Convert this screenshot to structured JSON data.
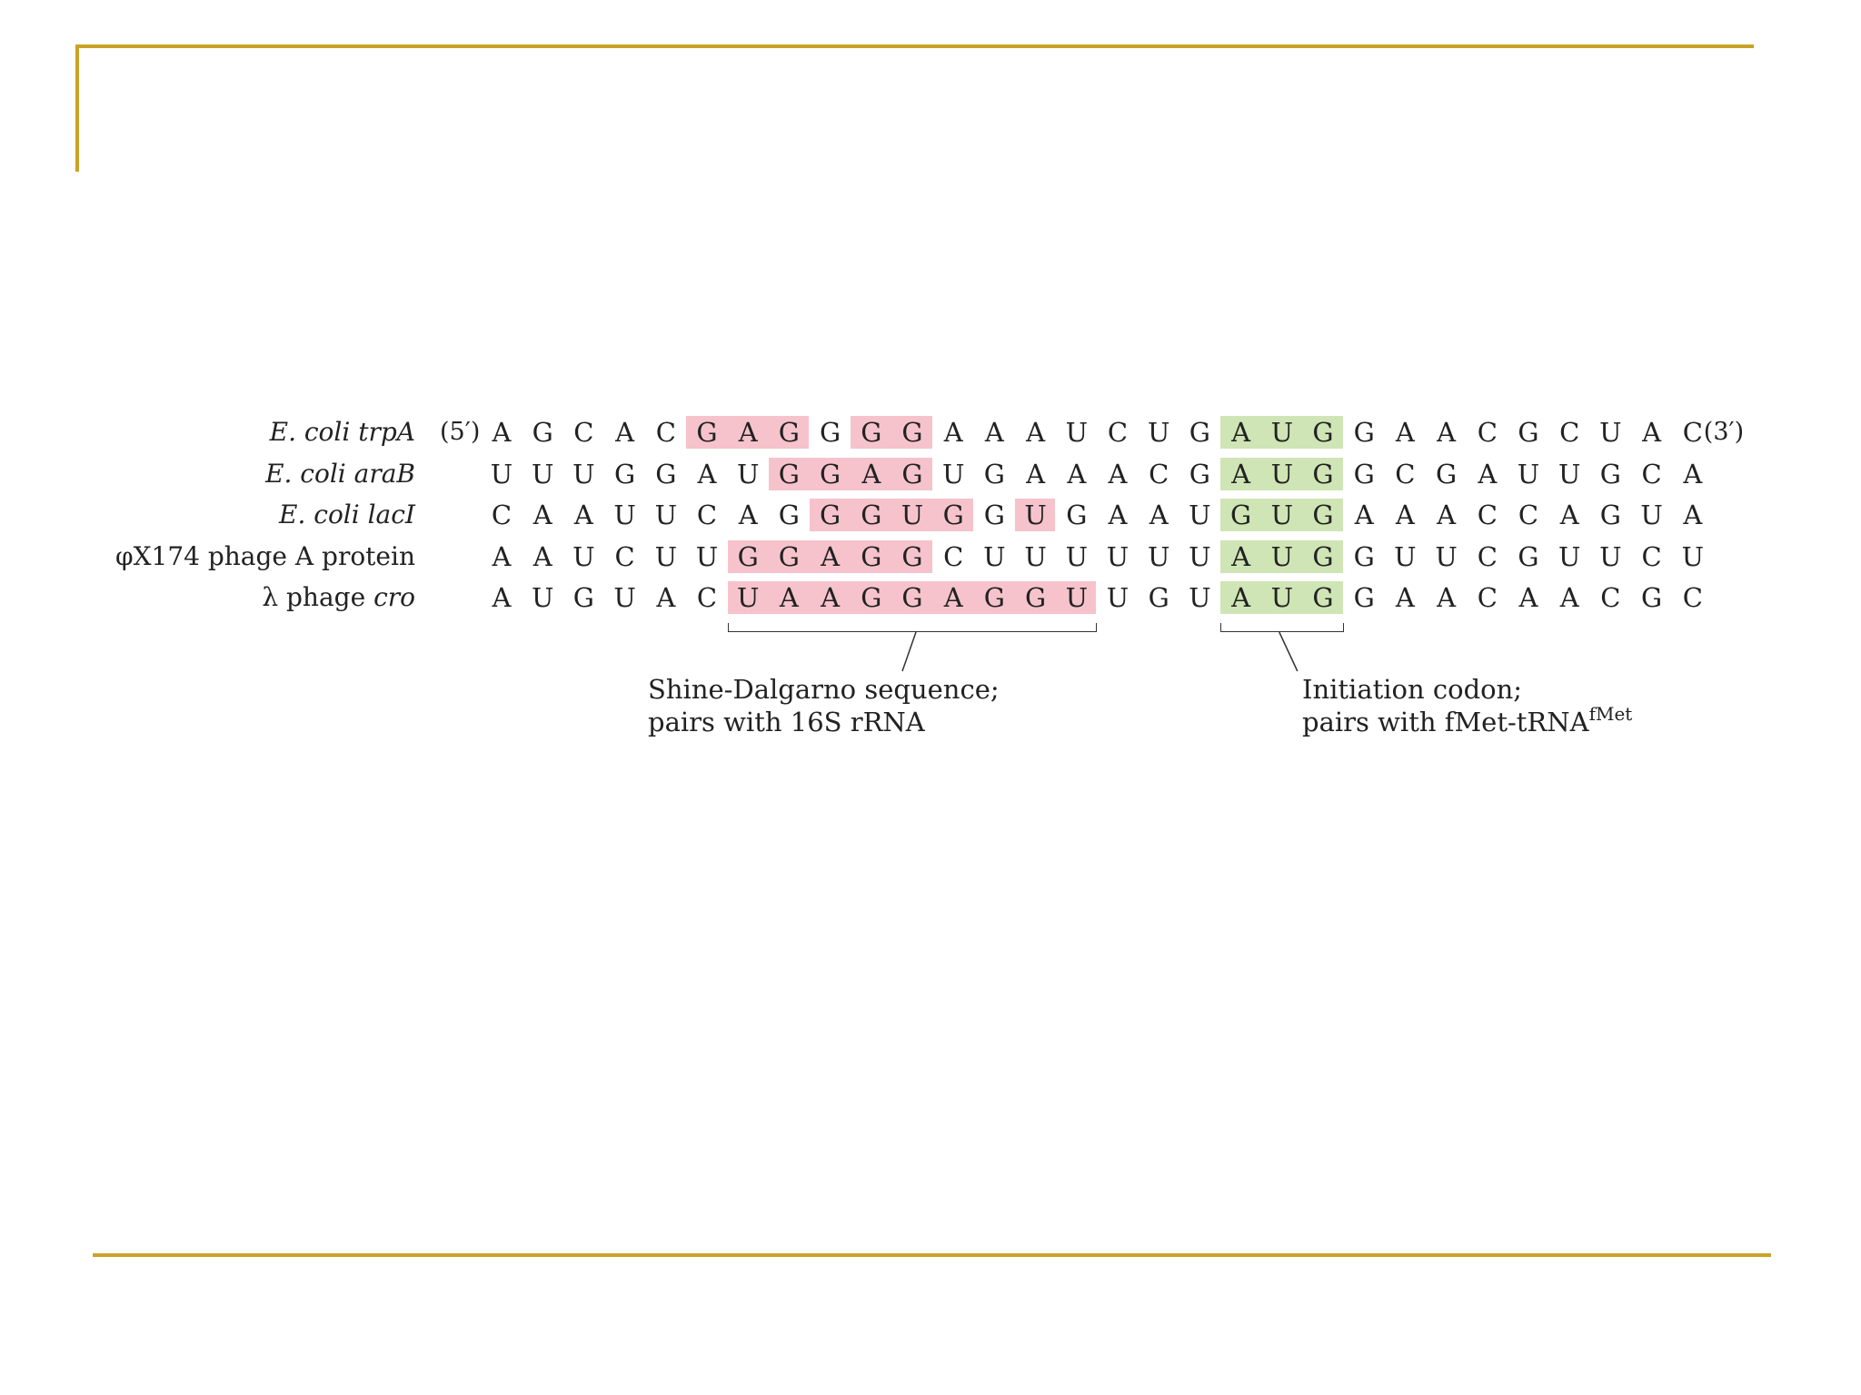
{
  "colors": {
    "frame_line": "#c9a227",
    "shine_dalgarno_highlight": "#f6c3cc",
    "initiation_codon_highlight": "#cfe5b5",
    "text": "#222222"
  },
  "rows": [
    {
      "label_italic": "E. coli trpA",
      "label_plain": "",
      "prefix": "(5′)",
      "suffix": "(3′)",
      "sequence": [
        "A",
        "G",
        "C",
        "A",
        "C",
        "G",
        "A",
        "G",
        "G",
        "G",
        "G",
        "A",
        "A",
        "A",
        "U",
        "C",
        "U",
        "G",
        "A",
        "U",
        "G",
        "G",
        "A",
        "A",
        "C",
        "G",
        "C",
        "U",
        "A",
        "C"
      ],
      "sd_ranges": [
        [
          5,
          7
        ],
        [
          9,
          10
        ]
      ],
      "codon_range": [
        18,
        20
      ]
    },
    {
      "label_italic": "E. coli araB",
      "label_plain": "",
      "prefix": "",
      "suffix": "",
      "sequence": [
        "U",
        "U",
        "U",
        "G",
        "G",
        "A",
        "U",
        "G",
        "G",
        "A",
        "G",
        "U",
        "G",
        "A",
        "A",
        "A",
        "C",
        "G",
        "A",
        "U",
        "G",
        "G",
        "C",
        "G",
        "A",
        "U",
        "U",
        "G",
        "C",
        "A"
      ],
      "sd_ranges": [
        [
          7,
          10
        ]
      ],
      "codon_range": [
        18,
        20
      ]
    },
    {
      "label_italic": "E. coli lacI",
      "label_plain": "",
      "prefix": "",
      "suffix": "",
      "sequence": [
        "C",
        "A",
        "A",
        "U",
        "U",
        "C",
        "A",
        "G",
        "G",
        "G",
        "U",
        "G",
        "G",
        "U",
        "G",
        "A",
        "A",
        "U",
        "G",
        "U",
        "G",
        "A",
        "A",
        "A",
        "C",
        "C",
        "A",
        "G",
        "U",
        "A"
      ],
      "sd_ranges": [
        [
          8,
          11
        ],
        [
          13,
          13
        ]
      ],
      "codon_range": [
        18,
        20
      ]
    },
    {
      "label_italic": "",
      "label_plain": "φX174 phage A protein",
      "prefix": "",
      "suffix": "",
      "sequence": [
        "A",
        "A",
        "U",
        "C",
        "U",
        "U",
        "G",
        "G",
        "A",
        "G",
        "G",
        "C",
        "U",
        "U",
        "U",
        "U",
        "U",
        "U",
        "A",
        "U",
        "G",
        "G",
        "U",
        "U",
        "C",
        "G",
        "U",
        "U",
        "C",
        "U"
      ],
      "sd_ranges": [
        [
          6,
          10
        ]
      ],
      "codon_range": [
        18,
        20
      ]
    },
    {
      "label_italic": "cro",
      "label_plain": "λ phage ",
      "prefix": "",
      "suffix": "",
      "sequence": [
        "A",
        "U",
        "G",
        "U",
        "A",
        "C",
        "U",
        "A",
        "A",
        "G",
        "G",
        "A",
        "G",
        "G",
        "U",
        "U",
        "G",
        "U",
        "A",
        "U",
        "G",
        "G",
        "A",
        "A",
        "C",
        "A",
        "A",
        "C",
        "G",
        "C"
      ],
      "sd_ranges": [
        [
          6,
          14
        ]
      ],
      "codon_range": [
        18,
        20
      ]
    }
  ],
  "annotations": {
    "shine_dalgarno": {
      "line1": "Shine-Dalgarno sequence;",
      "line2": "pairs with 16S rRNA"
    },
    "initiation_codon": {
      "line1": "Initiation codon;",
      "line2_main": "pairs with fMet-tRNA",
      "line2_sup": "fMet"
    }
  }
}
